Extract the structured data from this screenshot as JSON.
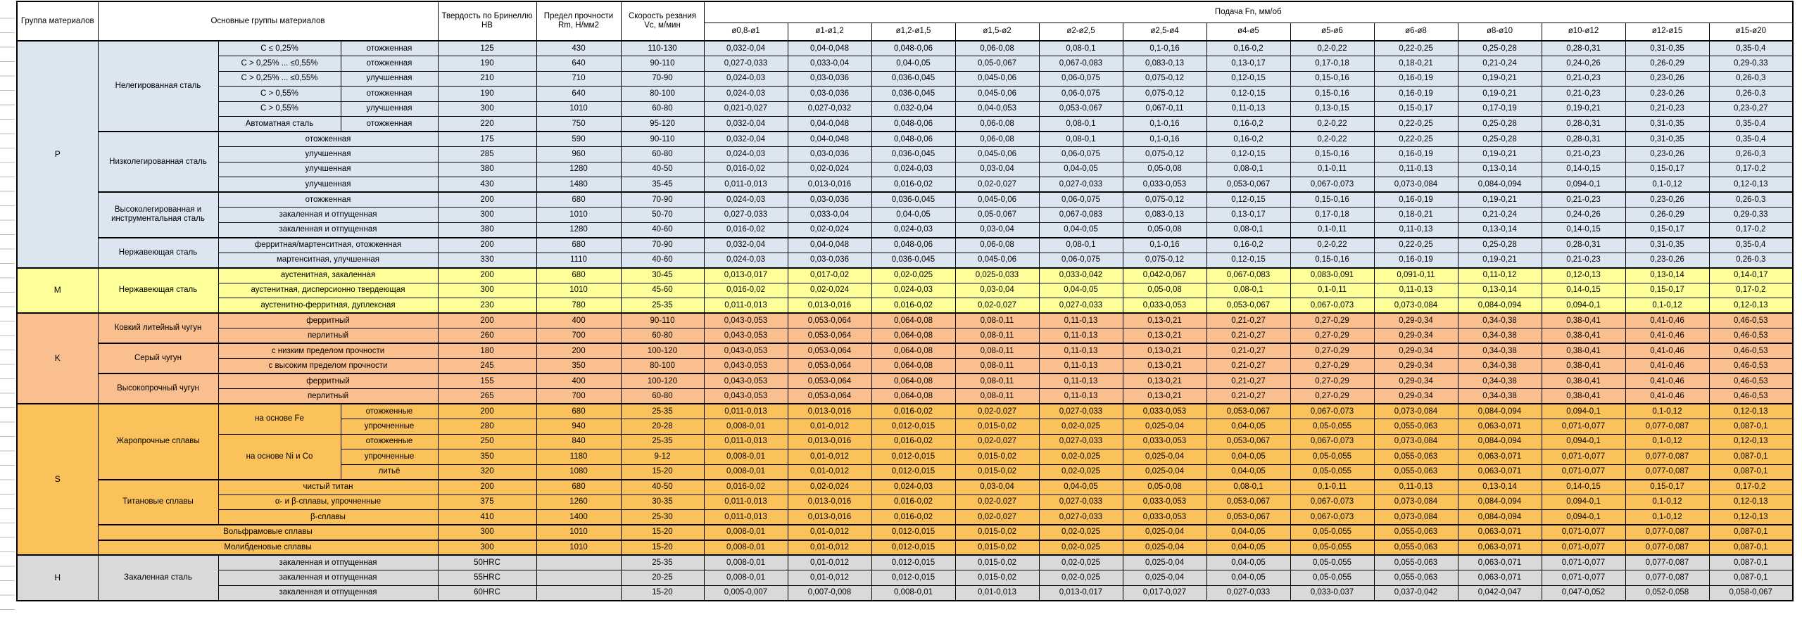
{
  "header": {
    "group": "Группа материалов",
    "materials": "Основные группы материалов",
    "hardness": "Твердость по Бринеллю HB",
    "strength": "Предел прочности Rm, Н/мм2",
    "speed": "Скорость резания Vc, м/мин",
    "feed": "Подача Fn, мм/об",
    "diameters": [
      "ø0,8-ø1",
      "ø1-ø1,2",
      "ø1,2-ø1,5",
      "ø1,5-ø2",
      "ø2-ø2,5",
      "ø2,5-ø4",
      "ø4-ø5",
      "ø5-ø6",
      "ø6-ø8",
      "ø8-ø10",
      "ø10-ø12",
      "ø12-ø15",
      "ø15-ø20"
    ]
  },
  "feed_profiles": {
    "A": [
      "0,032-0,04",
      "0,04-0,048",
      "0,048-0,06",
      "0,06-0,08",
      "0,08-0,1",
      "0,1-0,16",
      "0,16-0,2",
      "0,2-0,22",
      "0,22-0,25",
      "0,25-0,28",
      "0,28-0,31",
      "0,31-0,35",
      "0,35-0,4"
    ],
    "B": [
      "0,027-0,033",
      "0,033-0,04",
      "0,04-0,05",
      "0,05-0,067",
      "0,067-0,083",
      "0,083-0,13",
      "0,13-0,17",
      "0,17-0,18",
      "0,18-0,21",
      "0,21-0,24",
      "0,24-0,26",
      "0,26-0,29",
      "0,29-0,33"
    ],
    "C": [
      "0,024-0,03",
      "0,03-0,036",
      "0,036-0,045",
      "0,045-0,06",
      "0,06-0,075",
      "0,075-0,12",
      "0,12-0,15",
      "0,15-0,16",
      "0,16-0,19",
      "0,19-0,21",
      "0,21-0,23",
      "0,23-0,26",
      "0,26-0,3"
    ],
    "D": [
      "0,021-0,027",
      "0,027-0,032",
      "0,032-0,04",
      "0,04-0,053",
      "0,053-0,067",
      "0,067-0,11",
      "0,11-0,13",
      "0,13-0,15",
      "0,15-0,17",
      "0,17-0,19",
      "0,19-0,21",
      "0,21-0,23",
      "0,23-0,27"
    ],
    "E": [
      "0,016-0,02",
      "0,02-0,024",
      "0,024-0,03",
      "0,03-0,04",
      "0,04-0,05",
      "0,05-0,08",
      "0,08-0,1",
      "0,1-0,11",
      "0,11-0,13",
      "0,13-0,14",
      "0,14-0,15",
      "0,15-0,17",
      "0,17-0,2"
    ],
    "F": [
      "0,013-0,017",
      "0,017-0,02",
      "0,02-0,025",
      "0,025-0,033",
      "0,033-0,042",
      "0,042-0,067",
      "0,067-0,083",
      "0,083-0,091",
      "0,091-0,11",
      "0,11-0,12",
      "0,12-0,13",
      "0,13-0,14",
      "0,14-0,17"
    ],
    "G": [
      "0,011-0,013",
      "0,013-0,016",
      "0,016-0,02",
      "0,02-0,027",
      "0,027-0,033",
      "0,033-0,053",
      "0,053-0,067",
      "0,067-0,073",
      "0,073-0,084",
      "0,084-0,094",
      "0,094-0,1",
      "0,1-0,12",
      "0,12-0,13"
    ],
    "H": [
      "0,043-0,053",
      "0,053-0,064",
      "0,064-0,08",
      "0,08-0,11",
      "0,11-0,13",
      "0,13-0,21",
      "0,21-0,27",
      "0,27-0,29",
      "0,29-0,34",
      "0,34-0,38",
      "0,38-0,41",
      "0,41-0,46",
      "0,46-0,53"
    ],
    "I": [
      "0,008-0,01",
      "0,01-0,012",
      "0,012-0,015",
      "0,015-0,02",
      "0,02-0,025",
      "0,025-0,04",
      "0,04-0,05",
      "0,05-0,055",
      "0,055-0,063",
      "0,063-0,071",
      "0,071-0,077",
      "0,077-0,087",
      "0,087-0,1"
    ],
    "J": [
      "0,005-0,007",
      "0,007-0,008",
      "0,008-0,01",
      "0,01-0,013",
      "0,013-0,017",
      "0,017-0,027",
      "0,027-0,033",
      "0,033-0,037",
      "0,037-0,042",
      "0,042-0,047",
      "0,047-0,052",
      "0,052-0,058",
      "0,058-0,067"
    ]
  },
  "groups": [
    {
      "code": "P",
      "color": "#DCE6F1",
      "rows": [
        {
          "m1": {
            "t": "Нелегированная сталь",
            "rs": 6
          },
          "m2": {
            "t": "C ≤ 0,25%"
          },
          "m3": "отожженная",
          "hb": "125",
          "rm": "430",
          "vc": "110-130",
          "feed": "A"
        },
        {
          "m2": {
            "t": "C > 0,25% ... ≤0,55%"
          },
          "m3": "отожженная",
          "hb": "190",
          "rm": "640",
          "vc": "90-110",
          "feed": "B"
        },
        {
          "m2": {
            "t": "C > 0,25% ... ≤0,55%"
          },
          "m3": "улучшенная",
          "hb": "210",
          "rm": "710",
          "vc": "70-90",
          "feed": "C"
        },
        {
          "m2": {
            "t": "C > 0,55%"
          },
          "m3": "отожженная",
          "hb": "190",
          "rm": "640",
          "vc": "80-100",
          "feed": "C"
        },
        {
          "m2": {
            "t": "C > 0,55%"
          },
          "m3": "улучшенная",
          "hb": "300",
          "rm": "1010",
          "vc": "60-80",
          "feed": "D"
        },
        {
          "m2": {
            "t": "Автоматная сталь"
          },
          "m3": "отожженная",
          "hb": "220",
          "rm": "750",
          "vc": "95-120",
          "feed": "A"
        },
        {
          "m1": {
            "t": "Низколегированная сталь",
            "rs": 4
          },
          "m23": "отожженная",
          "hb": "175",
          "rm": "590",
          "vc": "90-110",
          "feed": "A"
        },
        {
          "m23": "улучшенная",
          "hb": "285",
          "rm": "960",
          "vc": "60-80",
          "feed": "C"
        },
        {
          "m23": "улучшенная",
          "hb": "380",
          "rm": "1280",
          "vc": "40-50",
          "feed": "E"
        },
        {
          "m23": "улучшенная",
          "hb": "430",
          "rm": "1480",
          "vc": "35-45",
          "feed": "G"
        },
        {
          "m1": {
            "t": "Высоколегированная и инструментальная сталь",
            "rs": 3
          },
          "m23": "отожженная",
          "hb": "200",
          "rm": "680",
          "vc": "70-90",
          "feed": "C"
        },
        {
          "m23": "закаленная и отпущенная",
          "hb": "300",
          "rm": "1010",
          "vc": "50-70",
          "feed": "B"
        },
        {
          "m23": "закаленная и отпущенная",
          "hb": "380",
          "rm": "1280",
          "vc": "40-60",
          "feed": "E"
        },
        {
          "m1": {
            "t": "Нержавеющая сталь",
            "rs": 2
          },
          "m23": "ферритная/мартенситная, отожженная",
          "hb": "200",
          "rm": "680",
          "vc": "70-90",
          "feed": "A"
        },
        {
          "m23": "мартенситная, улучшенная",
          "hb": "330",
          "rm": "1110",
          "vc": "40-60",
          "feed": "C"
        }
      ]
    },
    {
      "code": "M",
      "color": "#FFFF99",
      "rows": [
        {
          "m1": {
            "t": "Нержавеющая сталь",
            "rs": 3
          },
          "m23": "аустенитная, закаленная",
          "hb": "200",
          "rm": "680",
          "vc": "30-45",
          "feed": "F"
        },
        {
          "m23": "аустенитная, дисперсионно твердеющая",
          "hb": "300",
          "rm": "1010",
          "vc": "45-60",
          "feed": "E"
        },
        {
          "m23": "аустенитно-ферритная, дуплексная",
          "hb": "230",
          "rm": "780",
          "vc": "25-35",
          "feed": "G"
        }
      ]
    },
    {
      "code": "K",
      "color": "#FABF8F",
      "rows": [
        {
          "m1": {
            "t": "Ковкий литейный чугун",
            "rs": 2
          },
          "m23": "ферритный",
          "hb": "200",
          "rm": "400",
          "vc": "90-110",
          "feed": "H"
        },
        {
          "m23": "перлитный",
          "hb": "260",
          "rm": "700",
          "vc": "60-80",
          "feed": "H"
        },
        {
          "m1": {
            "t": "Серый чугун",
            "rs": 2
          },
          "m23": "с низким пределом прочности",
          "hb": "180",
          "rm": "200",
          "vc": "100-120",
          "feed": "H"
        },
        {
          "m23": "с высоким пределом прочности",
          "hb": "245",
          "rm": "350",
          "vc": "80-100",
          "feed": "H"
        },
        {
          "m1": {
            "t": "Высокопрочный чугун",
            "rs": 2
          },
          "m23": "ферритный",
          "hb": "155",
          "rm": "400",
          "vc": "100-120",
          "feed": "H"
        },
        {
          "m23": "перлитный",
          "hb": "265",
          "rm": "700",
          "vc": "60-80",
          "feed": "H"
        }
      ]
    },
    {
      "code": "S",
      "color": "#FBC15B",
      "rows": [
        {
          "m1": {
            "t": "Жаропрочные сплавы",
            "rs": 5
          },
          "m2": {
            "t": "на основе Fe",
            "rs": 2
          },
          "m3": "отожженные",
          "hb": "200",
          "rm": "680",
          "vc": "25-35",
          "feed": "G"
        },
        {
          "m3": "упрочненные",
          "hb": "280",
          "rm": "940",
          "vc": "20-28",
          "feed": "I"
        },
        {
          "m2": {
            "t": "на основе Ni и Co",
            "rs": 3
          },
          "m3": "отожженные",
          "hb": "250",
          "rm": "840",
          "vc": "25-35",
          "feed": "G"
        },
        {
          "m3": "упрочненные",
          "hb": "350",
          "rm": "1180",
          "vc": "9-12",
          "feed": "I"
        },
        {
          "m3": "литьё",
          "hb": "320",
          "rm": "1080",
          "vc": "15-20",
          "feed": "I"
        },
        {
          "m1": {
            "t": "Титановые сплавы",
            "rs": 3
          },
          "m23": "чистый титан",
          "hb": "200",
          "rm": "680",
          "vc": "40-50",
          "feed": "E"
        },
        {
          "m23": "α- и β-сплавы, упрочненные",
          "hb": "375",
          "rm": "1260",
          "vc": "30-35",
          "feed": "G"
        },
        {
          "m23": "β-сплавы",
          "hb": "410",
          "rm": "1400",
          "vc": "25-30",
          "feed": "G"
        },
        {
          "m123": "Вольфрамовые сплавы",
          "hb": "300",
          "rm": "1010",
          "vc": "15-20",
          "feed": "I"
        },
        {
          "m123": "Молибденовые сплавы",
          "hb": "300",
          "rm": "1010",
          "vc": "15-20",
          "feed": "I"
        }
      ]
    },
    {
      "code": "H",
      "color": "#D9D9D9",
      "rows": [
        {
          "m1": {
            "t": "Закаленная сталь",
            "rs": 3
          },
          "m23": "закаленная и отпущенная",
          "hb": "50HRC",
          "rm": "",
          "vc": "25-35",
          "feed": "I"
        },
        {
          "m23": "закаленная и отпущенная",
          "hb": "55HRC",
          "rm": "",
          "vc": "20-25",
          "feed": "I"
        },
        {
          "m23": "закаленная и отпущенная",
          "hb": "60HRC",
          "rm": "",
          "vc": "15-20",
          "feed": "J"
        }
      ]
    }
  ]
}
